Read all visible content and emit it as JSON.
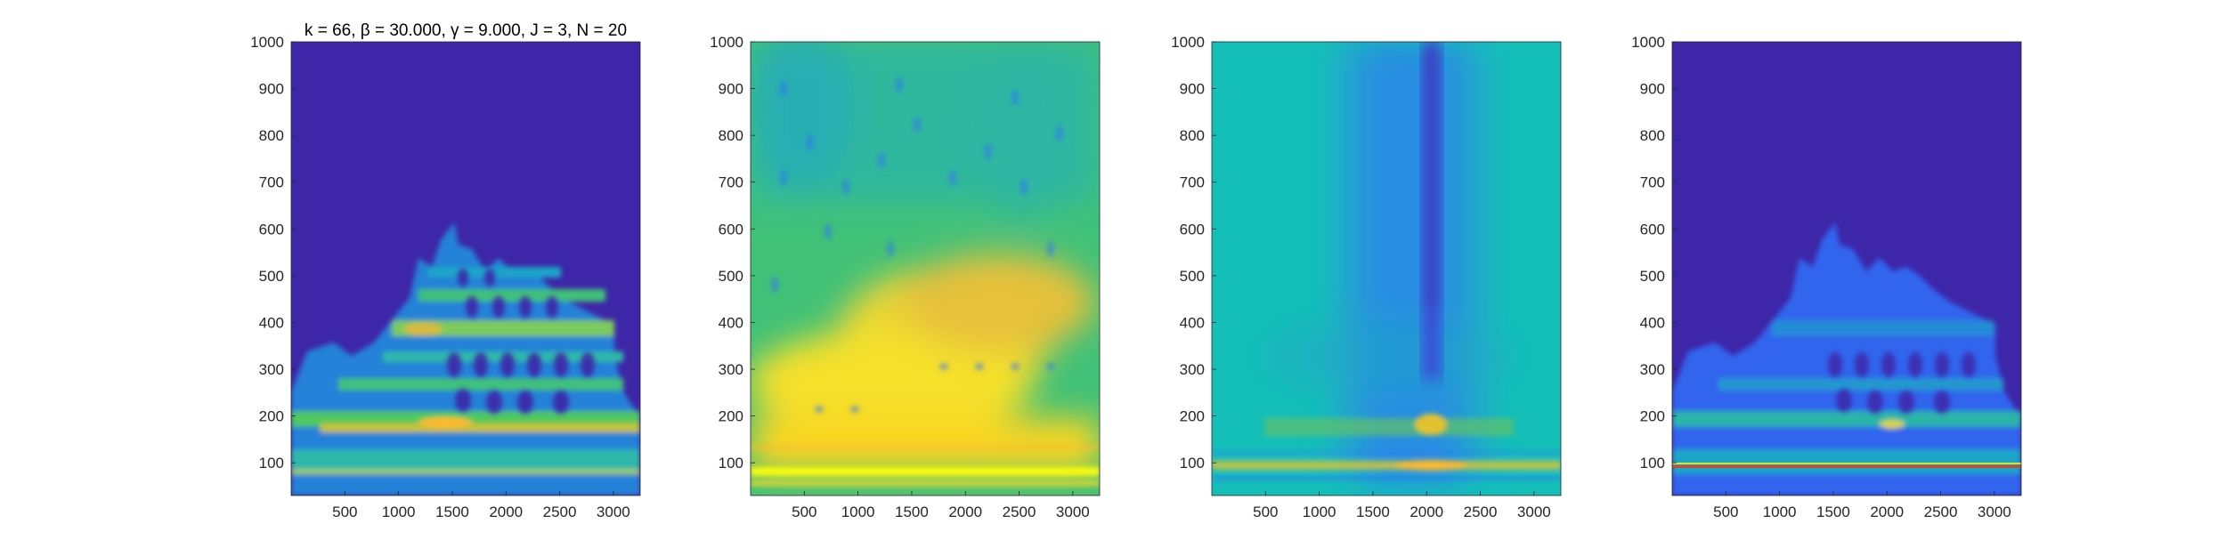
{
  "figure": {
    "title": "k = 66, β = 30.000, γ = 9.000, J = 3, N = 20"
  },
  "colors": {
    "background_dark": "#3e26a8",
    "background_teal": "#14bfb8",
    "accent_yellow": "#f9fb0e",
    "accent_orange": "#fdb92f",
    "green": "#41c178",
    "blue": "#2f70fa"
  },
  "chart_data": [
    {
      "type": "heatmap",
      "title": "k = 66, β = 30.000, γ = 9.000, J = 3, N = 20",
      "xlabel": "",
      "ylabel": "",
      "xlim": [
        0,
        3250
      ],
      "ylim": [
        30,
        1000
      ],
      "xticks": [
        500,
        1000,
        1500,
        2000,
        2500,
        3000
      ],
      "yticks": [
        100,
        200,
        300,
        400,
        500,
        600,
        700,
        800,
        900,
        1000
      ],
      "colormap": "parula",
      "grid": false,
      "description_values": {
        "background_level": 0.0,
        "bands": [
          {
            "y": 85,
            "level": 0.7
          },
          {
            "y": 110,
            "level": 0.55
          },
          {
            "y": 175,
            "level": 0.8
          },
          {
            "y": 265,
            "level": 0.6
          },
          {
            "y": 330,
            "level": 0.5
          },
          {
            "y": 395,
            "level": 0.75
          },
          {
            "y": 455,
            "level": 0.55
          },
          {
            "y": 520,
            "level": 0.4
          }
        ]
      }
    },
    {
      "type": "heatmap",
      "title": "",
      "xlabel": "",
      "ylabel": "",
      "xlim": [
        0,
        3250
      ],
      "ylim": [
        30,
        1000
      ],
      "xticks": [
        500,
        1000,
        1500,
        2000,
        2500,
        3000
      ],
      "yticks": [
        100,
        200,
        300,
        400,
        500,
        600,
        700,
        800,
        900,
        1000
      ],
      "colormap": "parula",
      "grid": false,
      "description_values": {
        "background_level": 0.5,
        "bands": [
          {
            "y": 75,
            "level": 0.95
          },
          {
            "y": 160,
            "level": 0.95
          },
          {
            "y": 260,
            "level": 0.85
          },
          {
            "y": 380,
            "level": 0.95
          },
          {
            "y": 450,
            "level": 0.85
          }
        ]
      }
    },
    {
      "type": "heatmap",
      "title": "",
      "xlabel": "",
      "ylabel": "",
      "xlim": [
        0,
        3250
      ],
      "ylim": [
        30,
        1000
      ],
      "xticks": [
        500,
        1000,
        1500,
        2000,
        2500,
        3000
      ],
      "yticks": [
        100,
        200,
        300,
        400,
        500,
        600,
        700,
        800,
        900,
        1000
      ],
      "colormap": "parula",
      "grid": false,
      "description_values": {
        "background_level": 0.5,
        "dark_column_x": 2100,
        "bands": [
          {
            "y": 90,
            "level": 0.9
          },
          {
            "y": 175,
            "level": 0.85
          }
        ]
      }
    },
    {
      "type": "heatmap",
      "title": "",
      "xlabel": "",
      "ylabel": "",
      "xlim": [
        0,
        3250
      ],
      "ylim": [
        30,
        1000
      ],
      "xticks": [
        500,
        1000,
        1500,
        2000,
        2500,
        3000
      ],
      "yticks": [
        100,
        200,
        300,
        400,
        500,
        600,
        700,
        800,
        900,
        1000
      ],
      "colormap": "parula",
      "grid": false,
      "description_values": {
        "background_level": 0.0,
        "bands": [
          {
            "y": 85,
            "level": 0.95
          },
          {
            "y": 175,
            "level": 0.6
          },
          {
            "y": 265,
            "level": 0.45
          },
          {
            "y": 395,
            "level": 0.45
          }
        ]
      }
    }
  ]
}
